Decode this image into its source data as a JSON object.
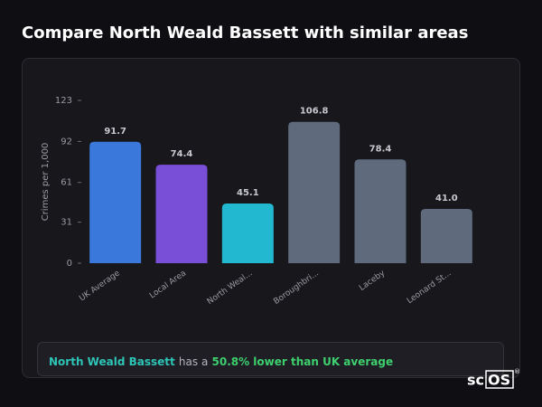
{
  "title": "Compare North Weald Bassett with similar areas",
  "chart_data": {
    "type": "bar",
    "y_label": "Crimes per 1,000",
    "categories": [
      "UK Average",
      "Local Area",
      "North Weal...",
      "Boroughbri...",
      "Laceby",
      "Leonard St..."
    ],
    "values": [
      91.7,
      74.4,
      45.1,
      106.8,
      78.4,
      41.0
    ],
    "value_labels": [
      "91.7",
      "74.4",
      "45.1",
      "106.8",
      "78.4",
      "41.0"
    ],
    "colors": [
      "#3b78dc",
      "#7a4fd8",
      "#22b8d0",
      "#5f6b7d",
      "#5f6b7d",
      "#5f6b7d"
    ],
    "ylim": [
      0,
      123
    ],
    "yticks": [
      0,
      31,
      61,
      92,
      123
    ],
    "grid": false
  },
  "note": {
    "area": "North Weald Bassett",
    "middle": "has a",
    "highlight": "50.8% lower than UK average"
  },
  "brand": {
    "prefix": "sc",
    "boxed": "OS",
    "mark": "®"
  }
}
